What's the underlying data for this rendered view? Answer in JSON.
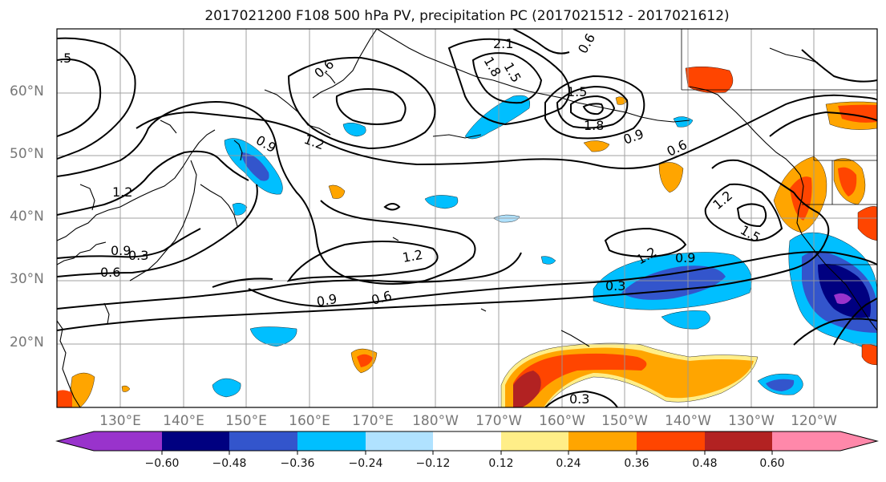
{
  "title": "2017021200 F108 500 hPa PV, precipitation PC (2017021512 - 2017021612)",
  "lat_labels": [
    "60°N",
    "50°N",
    "40°N",
    "30°N",
    "20°N"
  ],
  "lon_labels": [
    "130°E",
    "140°E",
    "150°E",
    "160°E",
    "170°E",
    "180°W",
    "170°W",
    "160°W",
    "150°W",
    "140°W",
    "130°W",
    "120°W"
  ],
  "contour_labels": [
    ".5",
    "1.2",
    "0.9",
    "0.3",
    "0.6",
    "0.6",
    "1.2",
    "2.1",
    "1.8",
    "1.5",
    "0.6",
    "1.5",
    "1.8",
    "0.9",
    "0.6",
    "0.9",
    "1.2",
    "0.9",
    "1.2",
    "0.9",
    "0.6",
    "0.3",
    "1.2",
    "1.5",
    "0.3"
  ],
  "colorbar": {
    "ticks": [
      "−0.60",
      "−0.48",
      "−0.36",
      "−0.24",
      "−0.12",
      "0.12",
      "0.24",
      "0.36",
      "0.48",
      "0.60"
    ],
    "colors": [
      "#9933cc",
      "#000080",
      "#3355cc",
      "#00bfff",
      "#b0e2ff",
      "#ffffff",
      "#ffee88",
      "#ffa500",
      "#ff4500",
      "#b22222",
      "#ff88aa"
    ]
  },
  "colors": {
    "contour": "#000000",
    "grid": "#999999",
    "coast": "#000000"
  }
}
